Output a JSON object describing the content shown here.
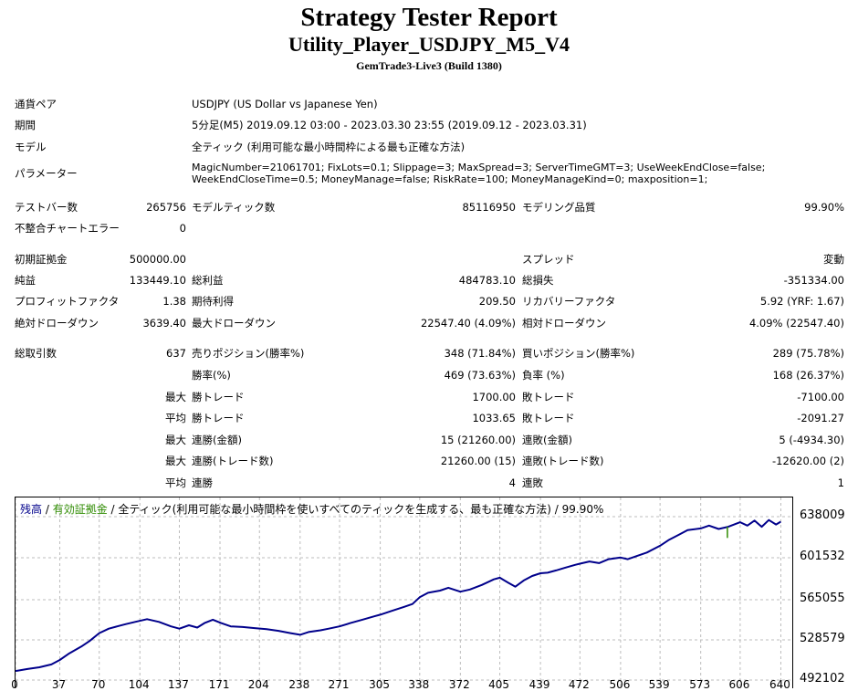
{
  "report": {
    "title": "Strategy Tester Report",
    "subtitle": "Utility_Player_USDJPY_M5_V4",
    "build": "GemTrade3-Live3 (Build 1380)"
  },
  "info": {
    "symbol_label": "通貨ペア",
    "symbol_value": "USDJPY (US Dollar vs Japanese Yen)",
    "period_label": "期間",
    "period_value": "5分足(M5) 2019.09.12 03:00 - 2023.03.30 23:55 (2019.09.12 - 2023.03.31)",
    "model_label": "モデル",
    "model_value": "全ティック (利用可能な最小時間枠による最も正確な方法)",
    "params_label": "パラメーター",
    "params_line1": "MagicNumber=21061701; FixLots=0.1; Slippage=3; MaxSpread=3; ServerTimeGMT=3; UseWeekEndClose=false;",
    "params_line2": "WeekEndCloseTime=0.5; MoneyManage=false; RiskRate=100; MoneyManageKind=0; maxposition=1;"
  },
  "stats": {
    "bars_label": "テストバー数",
    "bars_value": "265756",
    "ticks_label": "モデルティック数",
    "ticks_value": "85116950",
    "quality_label": "モデリング品質",
    "quality_value": "99.90%",
    "mismatch_label": "不整合チャートエラー",
    "mismatch_value": "0",
    "deposit_label": "初期証拠金",
    "deposit_value": "500000.00",
    "spread_label": "スプレッド",
    "spread_value": "変動",
    "net_label": "純益",
    "net_value": "133449.10",
    "gross_profit_label": "総利益",
    "gross_profit_value": "484783.10",
    "gross_loss_label": "総損失",
    "gross_loss_value": "-351334.00",
    "pf_label": "プロフィットファクタ",
    "pf_value": "1.38",
    "expected_label": "期待利得",
    "expected_value": "209.50",
    "recovery_label": "リカバリーファクタ",
    "recovery_value": "5.92 (YRF: 1.67)",
    "abs_dd_label": "絶対ドローダウン",
    "abs_dd_value": "3639.40",
    "max_dd_label": "最大ドローダウン",
    "max_dd_value": "22547.40 (4.09%)",
    "rel_dd_label": "相対ドローダウン",
    "rel_dd_value": "4.09% (22547.40)",
    "trades_label": "総取引数",
    "trades_value": "637",
    "short_label": "売りポジション(勝率%)",
    "short_value": "348 (71.84%)",
    "long_label": "買いポジション(勝率%)",
    "long_value": "289 (75.78%)",
    "winrate_label": "勝率(%)",
    "winrate_value": "469 (73.63%)",
    "lossrate_label": "負率 (%)",
    "lossrate_value": "168 (26.37%)",
    "max_label": "最大",
    "avg_label": "平均",
    "win_trade_label": "勝トレード",
    "loss_trade_label": "敗トレード",
    "max_win_value": "1700.00",
    "max_loss_value": "-7100.00",
    "avg_win_value": "1033.65",
    "avg_loss_value": "-2091.27",
    "consec_win_amt_label": "連勝(金額)",
    "consec_win_amt_value": "15 (21260.00)",
    "consec_loss_amt_label": "連敗(金額)",
    "consec_loss_amt_value": "5 (-4934.30)",
    "consec_win_trd_label": "連勝(トレード数)",
    "consec_win_trd_value": "21260.00 (15)",
    "consec_loss_trd_label": "連敗(トレード数)",
    "consec_loss_trd_value": "-12620.00 (2)",
    "avg_consec_win_label": "連勝",
    "avg_consec_win_value": "4",
    "avg_consec_loss_label": "連敗",
    "avg_consec_loss_value": "1"
  },
  "chart_data": {
    "type": "line",
    "legend": {
      "balance": "残高",
      "sep1": " / ",
      "equity": "有効証拠金",
      "rest": " / 全ティック(利用可能な最小時間枠を使いすべてのティックを生成する、最も正確な方法) / 99.90%"
    },
    "y_ticks": [
      "638009",
      "601532",
      "565055",
      "528579",
      "492102"
    ],
    "x_ticks": [
      "0",
      "37",
      "70",
      "104",
      "137",
      "171",
      "204",
      "238",
      "271",
      "305",
      "338",
      "372",
      "405",
      "439",
      "472",
      "506",
      "539",
      "573",
      "606",
      "640"
    ],
    "ylim": [
      492102,
      655000
    ],
    "xlim": [
      0,
      645
    ],
    "colors": {
      "balance": "#00008b",
      "equity": "#2e8b00"
    },
    "series": [
      {
        "x": [
          0,
          10,
          20,
          30,
          37,
          45,
          55,
          62,
          70,
          78,
          85,
          92,
          100,
          110,
          120,
          130,
          137,
          145,
          152,
          158,
          165,
          172,
          180,
          190,
          200,
          210,
          220,
          230,
          238,
          245,
          255,
          262,
          271,
          280,
          290,
          300,
          305,
          315,
          325,
          332,
          338,
          345,
          355,
          362,
          372,
          380,
          390,
          400,
          405,
          412,
          418,
          425,
          432,
          439,
          445,
          452,
          460,
          468,
          472,
          480,
          488,
          496,
          506,
          512,
          520,
          528,
          539,
          546,
          555,
          562,
          573,
          580,
          588,
          596,
          606,
          612,
          618,
          624,
          630,
          636,
          640
        ],
        "y": [
          500200,
          502000,
          503500,
          506000,
          510000,
          516000,
          522000,
          527000,
          534000,
          538000,
          540000,
          542000,
          544000,
          546500,
          544000,
          540000,
          538000,
          541000,
          539000,
          543000,
          546000,
          543000,
          540000,
          539500,
          538500,
          537500,
          536000,
          534000,
          532500,
          535000,
          536500,
          538000,
          540000,
          543000,
          546000,
          549000,
          550500,
          554000,
          557500,
          560000,
          566000,
          570000,
          572000,
          574500,
          571000,
          573000,
          577000,
          582000,
          583500,
          579000,
          575500,
          581000,
          585000,
          587500,
          588000,
          590000,
          592500,
          595000,
          596000,
          598000,
          596500,
          600000,
          601500,
          600000,
          603000,
          606000,
          612000,
          617000,
          622000,
          626000,
          627500,
          630000,
          627000,
          629000,
          633000,
          630000,
          634500,
          629000,
          635000,
          631000,
          633500
        ]
      }
    ]
  }
}
